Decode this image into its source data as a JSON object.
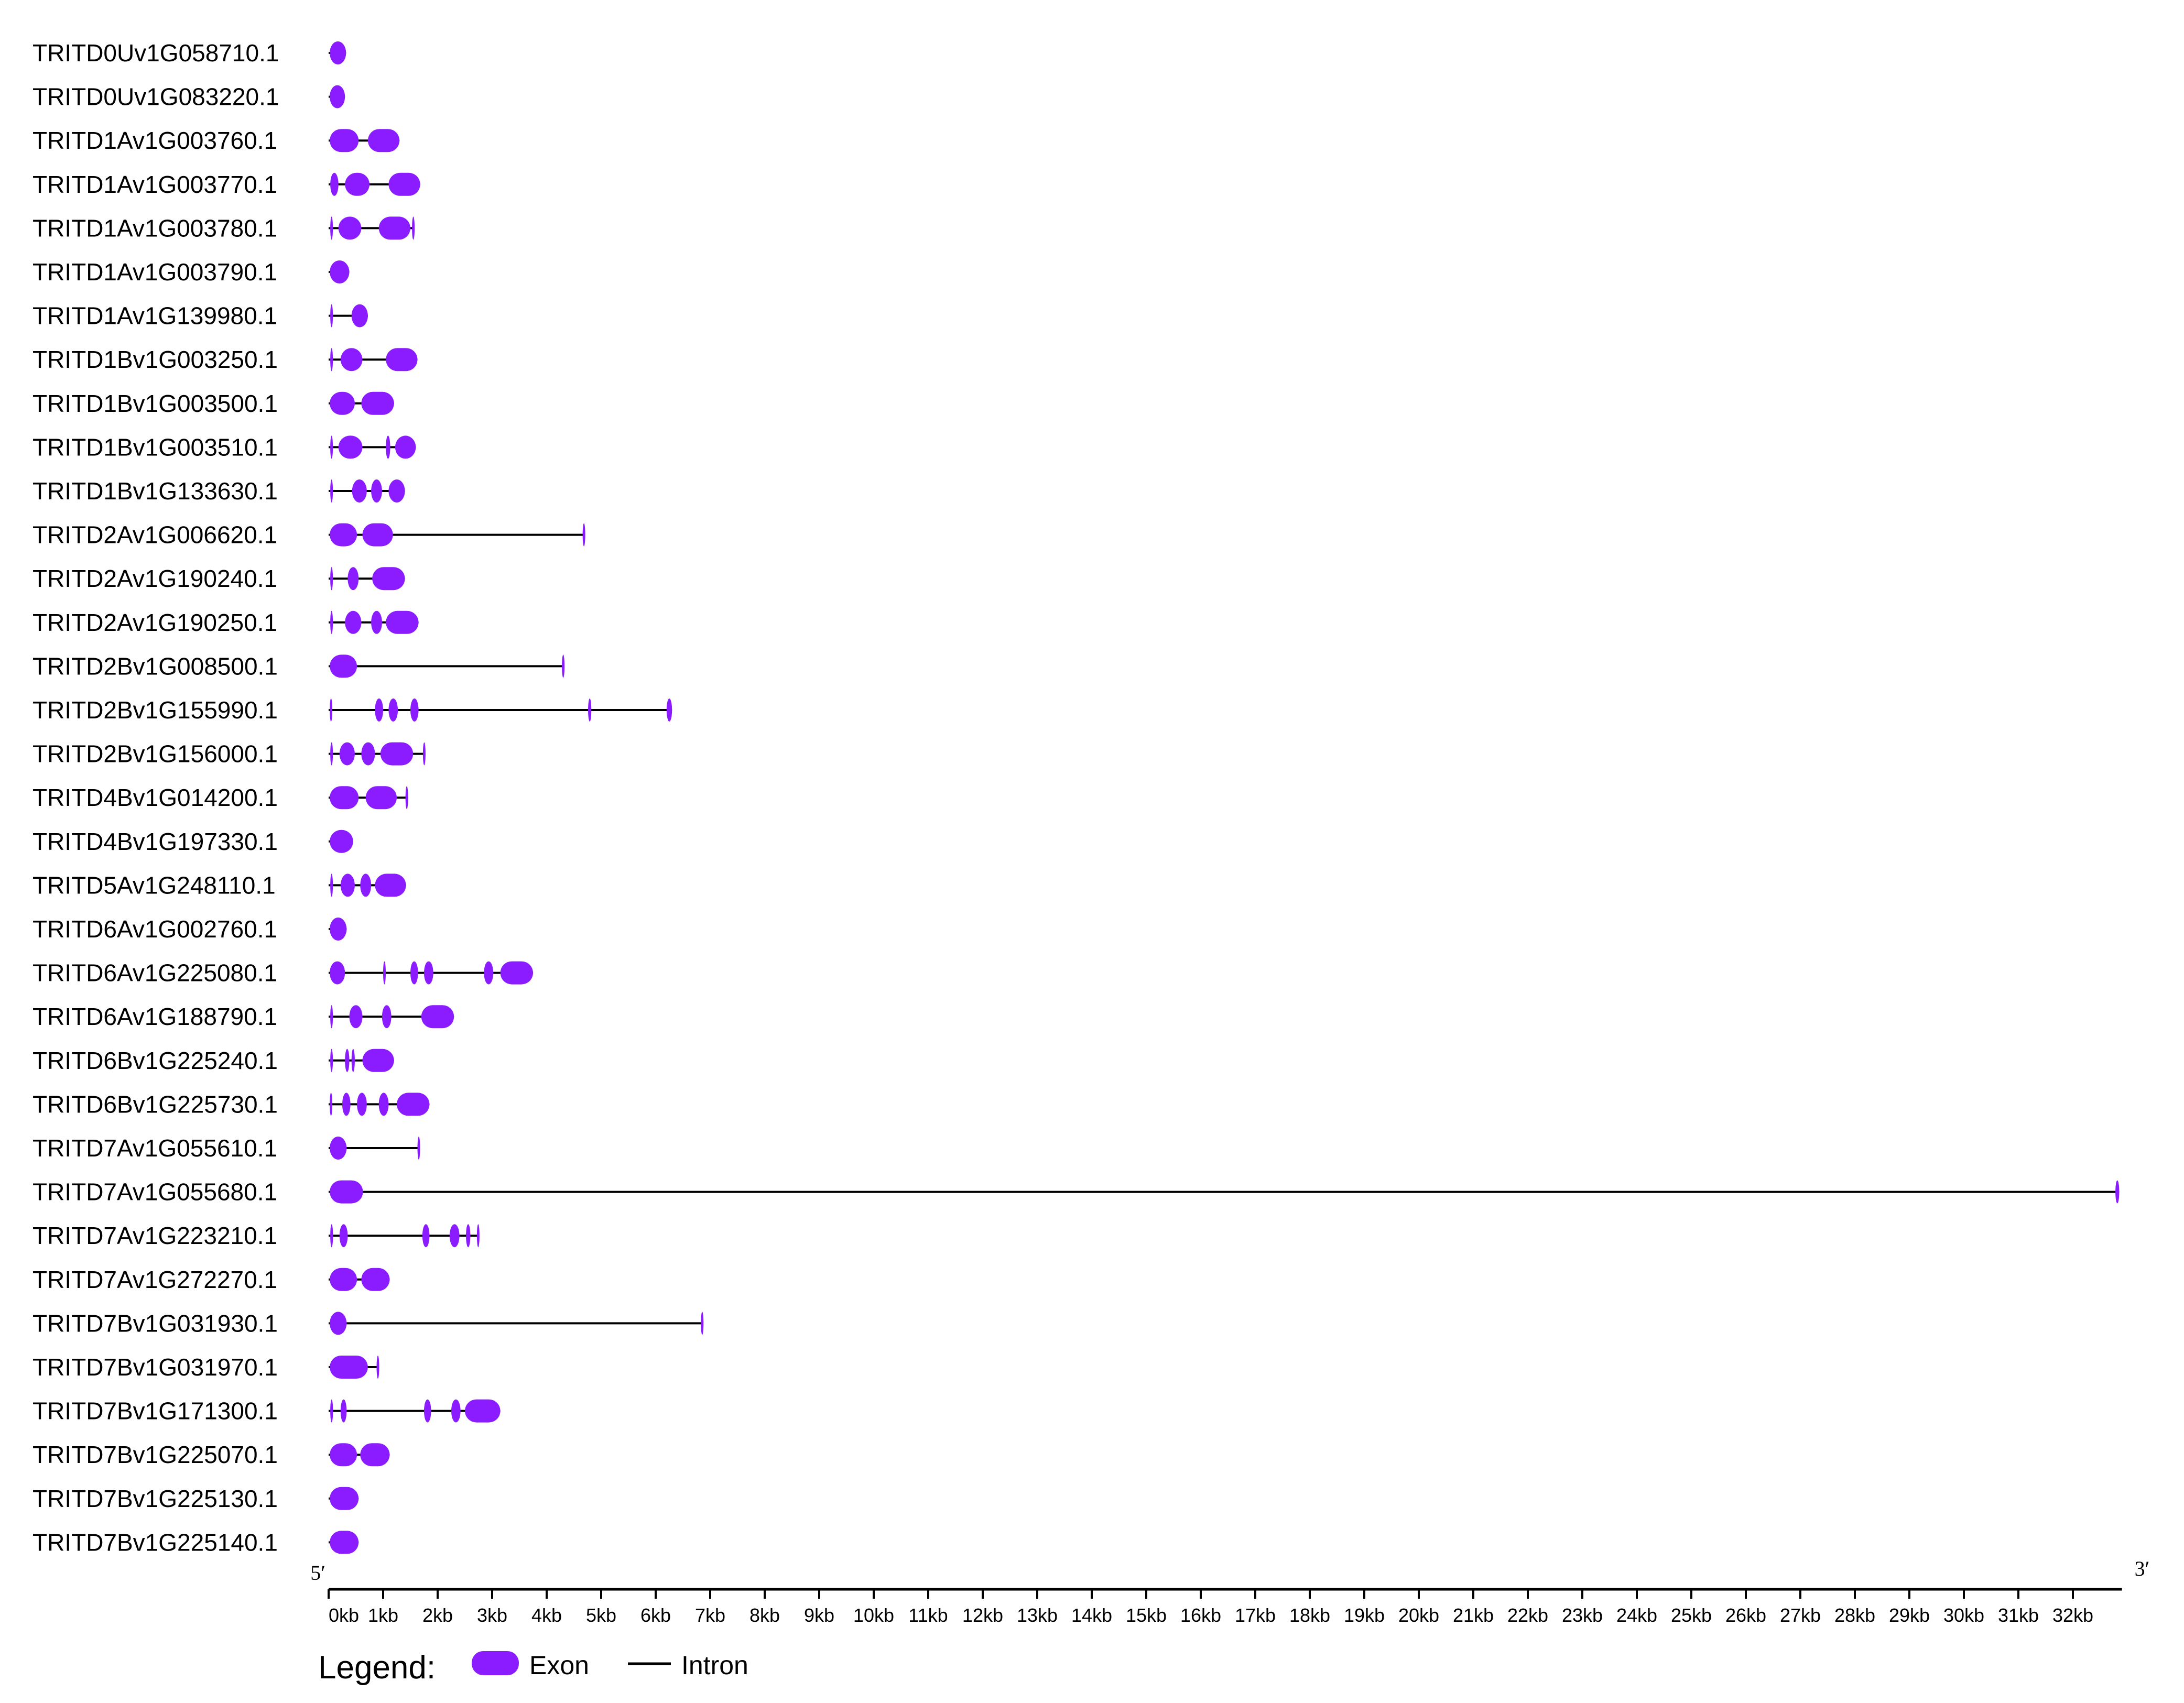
{
  "chart_data": {
    "type": "gene_structure",
    "unit": "kb",
    "five_prime_label": "5′",
    "three_prime_label": "3′",
    "x_ticks": [
      "0kb",
      "1kb",
      "2kb",
      "3kb",
      "4kb",
      "5kb",
      "6kb",
      "7kb",
      "8kb",
      "9kb",
      "10kb",
      "11kb",
      "12kb",
      "13kb",
      "14kb",
      "15kb",
      "16kb",
      "17kb",
      "18kb",
      "19kb",
      "20kb",
      "21kb",
      "22kb",
      "23kb",
      "24kb",
      "25kb",
      "26kb",
      "27kb",
      "28kb",
      "29kb",
      "30kb",
      "31kb",
      "32kb"
    ],
    "xlim": [
      0,
      32.9
    ],
    "colors": {
      "exon": "#8B1CFF",
      "intron": "#000000",
      "axis": "#000000"
    },
    "legend": {
      "title": "Legend:",
      "exon_label": "Exon",
      "intron_label": "Intron"
    },
    "genes": [
      {
        "name": "TRITD0Uv1G058710.1",
        "length": 0.32,
        "exons": [
          [
            0.02,
            0.32
          ]
        ]
      },
      {
        "name": "TRITD0Uv1G083220.1",
        "length": 0.3,
        "exons": [
          [
            0.02,
            0.3
          ]
        ]
      },
      {
        "name": "TRITD1Av1G003760.1",
        "length": 1.3,
        "exons": [
          [
            0.02,
            0.55
          ],
          [
            0.72,
            1.3
          ]
        ]
      },
      {
        "name": "TRITD1Av1G003770.1",
        "length": 1.68,
        "exons": [
          [
            0.03,
            0.18
          ],
          [
            0.3,
            0.75
          ],
          [
            1.1,
            1.68
          ]
        ]
      },
      {
        "name": "TRITD1Av1G003780.1",
        "length": 1.55,
        "exons": [
          [
            0.03,
            0.07
          ],
          [
            0.18,
            0.6
          ],
          [
            0.92,
            1.5
          ],
          [
            1.53,
            1.55
          ]
        ]
      },
      {
        "name": "TRITD1Av1G003790.1",
        "length": 0.38,
        "exons": [
          [
            0.02,
            0.38
          ]
        ]
      },
      {
        "name": "TRITD1Av1G139980.1",
        "length": 0.72,
        "exons": [
          [
            0.03,
            0.06
          ],
          [
            0.42,
            0.72
          ]
        ]
      },
      {
        "name": "TRITD1Bv1G003250.1",
        "length": 1.63,
        "exons": [
          [
            0.03,
            0.07
          ],
          [
            0.22,
            0.62
          ],
          [
            1.05,
            1.63
          ]
        ]
      },
      {
        "name": "TRITD1Bv1G003500.1",
        "length": 1.2,
        "exons": [
          [
            0.02,
            0.48
          ],
          [
            0.6,
            1.2
          ]
        ]
      },
      {
        "name": "TRITD1Bv1G003510.1",
        "length": 1.6,
        "exons": [
          [
            0.03,
            0.07
          ],
          [
            0.18,
            0.62
          ],
          [
            1.05,
            1.13
          ],
          [
            1.22,
            1.6
          ]
        ]
      },
      {
        "name": "TRITD1Bv1G133630.1",
        "length": 1.4,
        "exons": [
          [
            0.03,
            0.06
          ],
          [
            0.43,
            0.7
          ],
          [
            0.78,
            0.98
          ],
          [
            1.1,
            1.4
          ]
        ]
      },
      {
        "name": "TRITD2Av1G006620.1",
        "length": 4.7,
        "exons": [
          [
            0.02,
            0.52
          ],
          [
            0.62,
            1.18
          ],
          [
            4.66,
            4.7
          ]
        ]
      },
      {
        "name": "TRITD2Av1G190240.1",
        "length": 1.4,
        "exons": [
          [
            0.03,
            0.07
          ],
          [
            0.35,
            0.55
          ],
          [
            0.8,
            1.4
          ]
        ]
      },
      {
        "name": "TRITD2Av1G190250.1",
        "length": 1.65,
        "exons": [
          [
            0.03,
            0.07
          ],
          [
            0.3,
            0.6
          ],
          [
            0.78,
            0.98
          ],
          [
            1.05,
            1.65
          ]
        ]
      },
      {
        "name": "TRITD2Bv1G008500.1",
        "length": 4.32,
        "exons": [
          [
            0.02,
            0.52
          ],
          [
            4.28,
            4.32
          ]
        ]
      },
      {
        "name": "TRITD2Bv1G155990.1",
        "length": 6.3,
        "exons": [
          [
            0.02,
            0.05
          ],
          [
            0.85,
            1.0
          ],
          [
            1.1,
            1.27
          ],
          [
            1.5,
            1.65
          ],
          [
            4.76,
            4.82
          ],
          [
            6.2,
            6.3
          ]
        ]
      },
      {
        "name": "TRITD2Bv1G156000.1",
        "length": 1.75,
        "exons": [
          [
            0.03,
            0.07
          ],
          [
            0.2,
            0.48
          ],
          [
            0.6,
            0.85
          ],
          [
            0.95,
            1.55
          ],
          [
            1.73,
            1.75
          ]
        ]
      },
      {
        "name": "TRITD4Bv1G014200.1",
        "length": 1.43,
        "exons": [
          [
            0.02,
            0.55
          ],
          [
            0.68,
            1.25
          ],
          [
            1.41,
            1.43
          ]
        ]
      },
      {
        "name": "TRITD4Bv1G197330.1",
        "length": 0.45,
        "exons": [
          [
            0.02,
            0.45
          ]
        ]
      },
      {
        "name": "TRITD5Av1G248110.1",
        "length": 1.42,
        "exons": [
          [
            0.03,
            0.07
          ],
          [
            0.22,
            0.48
          ],
          [
            0.58,
            0.78
          ],
          [
            0.85,
            1.42
          ]
        ]
      },
      {
        "name": "TRITD6Av1G002760.1",
        "length": 0.33,
        "exons": [
          [
            0.02,
            0.33
          ]
        ]
      },
      {
        "name": "TRITD6Av1G225080.1",
        "length": 3.75,
        "exons": [
          [
            0.02,
            0.3
          ],
          [
            1.0,
            1.03
          ],
          [
            1.5,
            1.64
          ],
          [
            1.75,
            1.92
          ],
          [
            2.85,
            3.02
          ],
          [
            3.15,
            3.75
          ]
        ]
      },
      {
        "name": "TRITD6Av1G188790.1",
        "length": 2.3,
        "exons": [
          [
            0.03,
            0.07
          ],
          [
            0.38,
            0.62
          ],
          [
            0.98,
            1.15
          ],
          [
            1.7,
            2.3
          ]
        ]
      },
      {
        "name": "TRITD6Bv1G225240.1",
        "length": 1.2,
        "exons": [
          [
            0.03,
            0.07
          ],
          [
            0.3,
            0.38
          ],
          [
            0.42,
            0.48
          ],
          [
            0.62,
            1.2
          ]
        ]
      },
      {
        "name": "TRITD6Bv1G225730.1",
        "length": 1.85,
        "exons": [
          [
            0.02,
            0.04
          ],
          [
            0.25,
            0.4
          ],
          [
            0.52,
            0.7
          ],
          [
            0.92,
            1.1
          ],
          [
            1.25,
            1.85
          ]
        ]
      },
      {
        "name": "TRITD7Av1G055610.1",
        "length": 1.65,
        "exons": [
          [
            0.02,
            0.33
          ],
          [
            1.63,
            1.65
          ]
        ]
      },
      {
        "name": "TRITD7Av1G055680.1",
        "length": 32.85,
        "exons": [
          [
            0.02,
            0.63
          ],
          [
            32.78,
            32.85
          ]
        ]
      },
      {
        "name": "TRITD7Av1G223210.1",
        "length": 2.75,
        "exons": [
          [
            0.03,
            0.08
          ],
          [
            0.2,
            0.35
          ],
          [
            1.72,
            1.85
          ],
          [
            2.22,
            2.4
          ],
          [
            2.52,
            2.6
          ],
          [
            2.72,
            2.75
          ]
        ]
      },
      {
        "name": "TRITD7Av1G272270.1",
        "length": 1.12,
        "exons": [
          [
            0.02,
            0.52
          ],
          [
            0.6,
            1.12
          ]
        ]
      },
      {
        "name": "TRITD7Bv1G031930.1",
        "length": 6.85,
        "exons": [
          [
            0.02,
            0.33
          ],
          [
            6.83,
            6.85
          ]
        ]
      },
      {
        "name": "TRITD7Bv1G031970.1",
        "length": 0.9,
        "exons": [
          [
            0.02,
            0.72
          ],
          [
            0.88,
            0.9
          ]
        ]
      },
      {
        "name": "TRITD7Bv1G171300.1",
        "length": 3.15,
        "exons": [
          [
            0.03,
            0.08
          ],
          [
            0.22,
            0.33
          ],
          [
            1.75,
            1.88
          ],
          [
            2.25,
            2.42
          ],
          [
            2.5,
            3.15
          ]
        ]
      },
      {
        "name": "TRITD7Bv1G225070.1",
        "length": 1.12,
        "exons": [
          [
            0.02,
            0.52
          ],
          [
            0.58,
            1.12
          ]
        ]
      },
      {
        "name": "TRITD7Bv1G225130.1",
        "length": 0.55,
        "exons": [
          [
            0.02,
            0.55
          ]
        ]
      },
      {
        "name": "TRITD7Bv1G225140.1",
        "length": 0.55,
        "exons": [
          [
            0.02,
            0.55
          ]
        ]
      }
    ]
  }
}
